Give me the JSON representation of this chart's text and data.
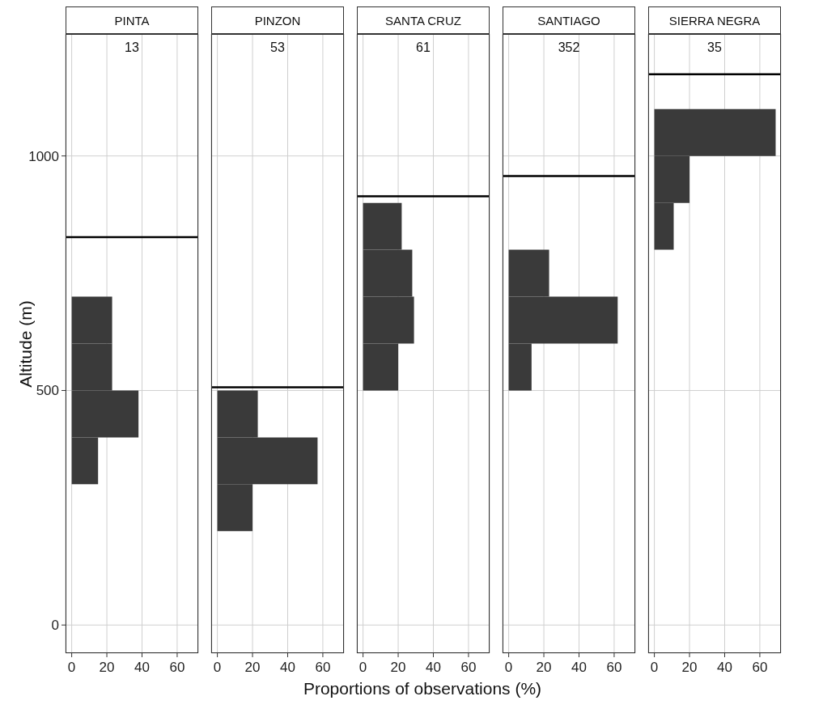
{
  "chart_data": [
    {
      "type": "histogram",
      "orientation": "horizontal",
      "title": "PINTA",
      "ylabel": "Altitude (m)",
      "bins": [
        300,
        400,
        500,
        600,
        700
      ],
      "values": [
        15,
        38,
        23,
        23
      ],
      "color": "#3a3a3a",
      "xlim": [
        -3.5,
        72
      ],
      "xticks": [
        0,
        20,
        40,
        60
      ],
      "ylim": [
        -60,
        1260
      ],
      "yticks": [
        0,
        500,
        1000
      ],
      "grid": true,
      "ref_lines": [
        {
          "axis": "y",
          "value": 827,
          "color": "#000000"
        }
      ],
      "annotations": [
        "13"
      ]
    },
    {
      "type": "histogram",
      "orientation": "horizontal",
      "title": "PINZON",
      "bins": [
        200,
        300,
        400,
        500
      ],
      "values": [
        20,
        57,
        23
      ],
      "color": "#3a3a3a",
      "xlim": [
        -3.5,
        72
      ],
      "xticks": [
        0,
        20,
        40,
        60
      ],
      "ylim": [
        -60,
        1260
      ],
      "yticks": [
        0,
        500,
        1000
      ],
      "grid": true,
      "tick_labels": "x",
      "ref_lines": [
        {
          "axis": "y",
          "value": 507,
          "color": "#000000"
        }
      ],
      "annotations": [
        "53"
      ]
    },
    {
      "type": "histogram",
      "orientation": "horizontal",
      "title": "SANTA CRUZ",
      "xlabel": "Proportions of observations (%)",
      "bins": [
        500,
        600,
        700,
        800,
        900
      ],
      "values": [
        20,
        29,
        28,
        22
      ],
      "color": "#3a3a3a",
      "xlim": [
        -3.5,
        72
      ],
      "xticks": [
        0,
        20,
        40,
        60
      ],
      "ylim": [
        -60,
        1260
      ],
      "yticks": [
        0,
        500,
        1000
      ],
      "grid": true,
      "tick_labels": "x",
      "ref_lines": [
        {
          "axis": "y",
          "value": 914,
          "color": "#000000"
        }
      ],
      "annotations": [
        "61"
      ]
    },
    {
      "type": "histogram",
      "orientation": "horizontal",
      "title": "SANTIAGO",
      "bins": [
        500,
        600,
        700,
        800
      ],
      "values": [
        13,
        62,
        23
      ],
      "color": "#3a3a3a",
      "xlim": [
        -3.5,
        72
      ],
      "xticks": [
        0,
        20,
        40,
        60
      ],
      "ylim": [
        -60,
        1260
      ],
      "yticks": [
        0,
        500,
        1000
      ],
      "grid": true,
      "tick_labels": "x",
      "ref_lines": [
        {
          "axis": "y",
          "value": 957,
          "color": "#000000"
        }
      ],
      "annotations": [
        "352"
      ]
    },
    {
      "type": "histogram",
      "orientation": "horizontal",
      "title": "SIERRA NEGRA",
      "bins": [
        800,
        900,
        1000,
        1100
      ],
      "values": [
        11,
        20,
        69
      ],
      "color": "#3a3a3a",
      "xlim": [
        -3.5,
        72
      ],
      "xticks": [
        0,
        20,
        40,
        60
      ],
      "ylim": [
        -60,
        1260
      ],
      "yticks": [
        0,
        500,
        1000
      ],
      "grid": true,
      "tick_labels": "x",
      "ref_lines": [
        {
          "axis": "y",
          "value": 1174,
          "color": "#000000"
        }
      ],
      "annotations": [
        "35"
      ]
    }
  ]
}
